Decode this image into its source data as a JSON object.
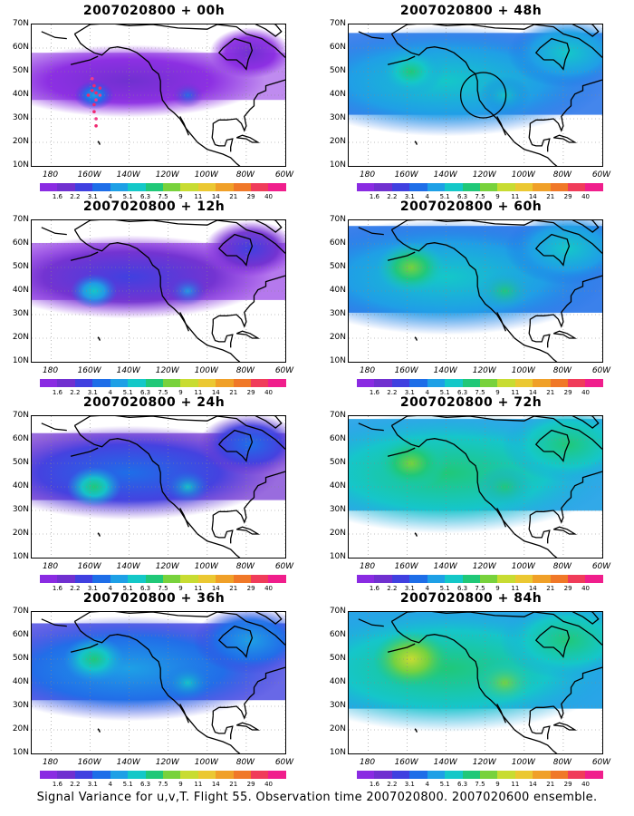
{
  "panels": [
    {
      "title": "2007020800 + 00h",
      "level": 0,
      "blob": 2.2,
      "flight_track": true,
      "circle": false
    },
    {
      "title": "2007020800 + 12h",
      "level": 1,
      "blob": 3.2,
      "flight_track": false,
      "circle": false
    },
    {
      "title": "2007020800 + 24h",
      "level": 2,
      "blob": 3.5,
      "flight_track": false,
      "circle": false
    },
    {
      "title": "2007020800 + 36h",
      "level": 3,
      "blob": 4.2,
      "flight_track": false,
      "circle": false
    },
    {
      "title": "2007020800 + 48h",
      "level": 3.5,
      "blob": 4.0,
      "flight_track": false,
      "circle": true
    },
    {
      "title": "2007020800 + 60h",
      "level": 4,
      "blob": 4.5,
      "flight_track": false,
      "circle": false
    },
    {
      "title": "2007020800 + 72h",
      "level": 4.5,
      "blob": 5,
      "flight_track": false,
      "circle": false
    },
    {
      "title": "2007020800 + 84h",
      "level": 5,
      "blob": 5.5,
      "flight_track": false,
      "circle": false
    }
  ],
  "lat_labels": [
    "70N",
    "60N",
    "50N",
    "40N",
    "30N",
    "20N",
    "10N"
  ],
  "lon_labels": [
    "180",
    "160W",
    "140W",
    "120W",
    "100W",
    "80W",
    "60W"
  ],
  "colorbar": {
    "labels": [
      "1.6",
      "2.2",
      "3.1",
      "4",
      "5.1",
      "6.3",
      "7.5",
      "9",
      "11",
      "14",
      "21",
      "29",
      "40"
    ],
    "colors": [
      "#8a2be2",
      "#7030d0",
      "#4040e0",
      "#1e6ee8",
      "#1ea0e6",
      "#14c8c8",
      "#20c878",
      "#78d23c",
      "#c8dc32",
      "#ebc832",
      "#f0a028",
      "#f07828",
      "#f03c5a",
      "#f01e8c"
    ]
  },
  "caption": "Signal Variance for u,v,T. Flight 55. Observation time 2007020800. 2007020600 ensemble."
}
